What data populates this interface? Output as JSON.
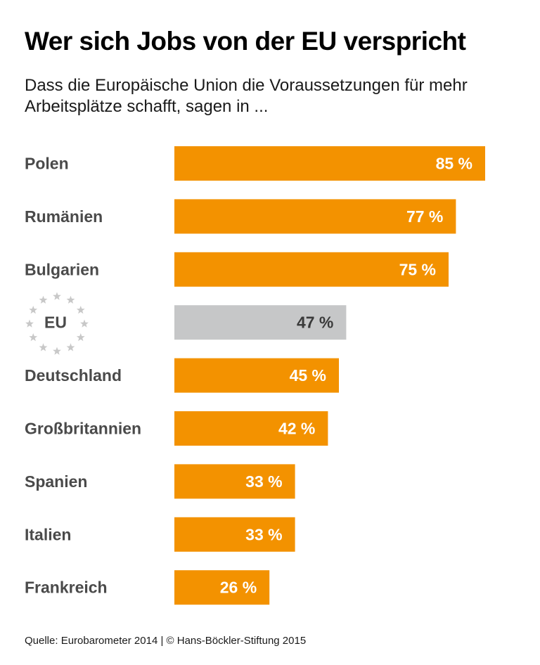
{
  "chart_data": {
    "type": "bar",
    "orientation": "horizontal",
    "title": "Wer sich Jobs von der EU verspricht",
    "subtitle": "Dass die Europäische Union die Voraussetzungen für mehr Arbeitsplätze schafft, sagen in ...",
    "categories": [
      "Polen",
      "Rumänien",
      "Bulgarien",
      "EU",
      "Deutschland",
      "Großbritannien",
      "Spanien",
      "Italien",
      "Frankreich"
    ],
    "values": [
      85,
      77,
      75,
      47,
      45,
      42,
      33,
      33,
      26
    ],
    "value_labels": [
      "85 %",
      "77 %",
      "75 %",
      "47 %",
      "45 %",
      "42 %",
      "33 %",
      "33 %",
      "26 %"
    ],
    "unit": "%",
    "highlight_category": "EU",
    "xlim": [
      0,
      100
    ],
    "grid": false,
    "source": "Quelle: Eurobarometer 2014 | © Hans-Böckler-Stiftung 2015",
    "colors": {
      "bar": "#f39200",
      "highlight_bar": "#c6c7c8",
      "label": "#4a4a4a",
      "value_on_bar": "#ffffff",
      "value_on_highlight": "#3a3a3a",
      "eu_stars": "#c8c8c8"
    }
  }
}
